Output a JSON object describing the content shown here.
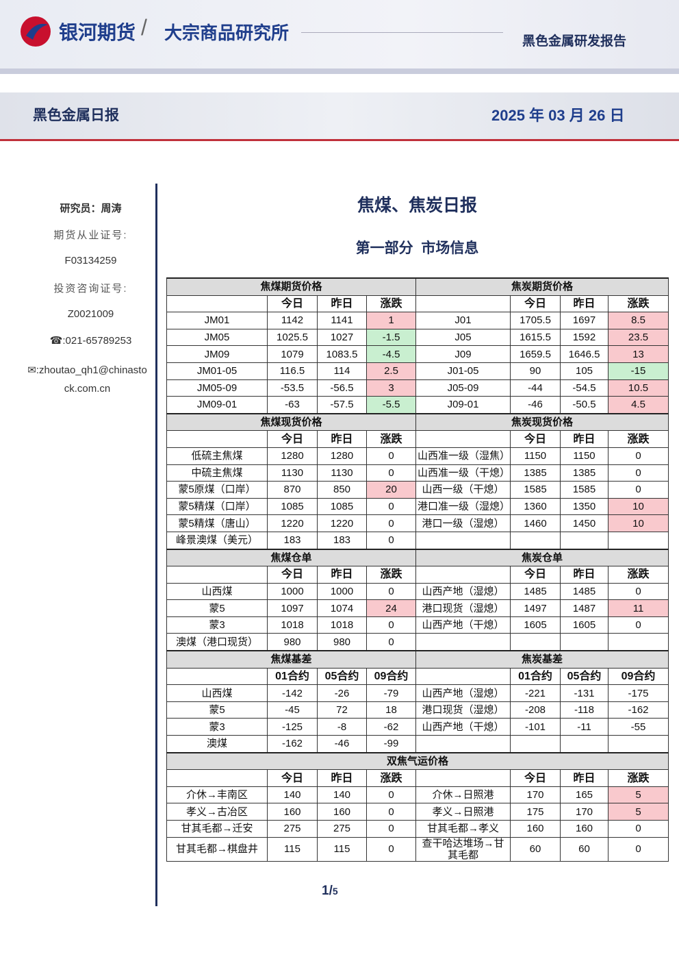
{
  "header": {
    "company": "银河期货",
    "institute": "大宗商品研究所",
    "report_type": "黑色金属研发报告"
  },
  "banner": {
    "title": "黑色金属日报",
    "date": "2025 年 03 月 26 日"
  },
  "sidebar": {
    "researcher": "研究员：周涛",
    "license_label": "期货从业证号:",
    "license": "F03134259",
    "consult_label": "投资咨询证号:",
    "consult": "Z0021009",
    "phone": "☎:021-65789253",
    "email": "✉:zhoutao_qh1@chinastock.com.cn"
  },
  "main": {
    "title": "焦煤、焦炭日报",
    "section": "第一部分  市场信息"
  },
  "table": {
    "sections": [
      {
        "left_title": "焦煤期货价格",
        "right_title": "焦炭期货价格",
        "left_headers": [
          "今日",
          "昨日",
          "涨跌"
        ],
        "right_headers": [
          "今日",
          "昨日",
          "涨跌"
        ],
        "left_rows": [
          [
            "JM01",
            1142,
            1141,
            1
          ],
          [
            "JM05",
            1025.5,
            1027,
            -1.5
          ],
          [
            "JM09",
            1079,
            1083.5,
            -4.5
          ],
          [
            "JM01-05",
            116.5,
            114,
            2.5
          ],
          [
            "JM05-09",
            -53.5,
            -56.5,
            3
          ],
          [
            "JM09-01",
            -63,
            -57.5,
            -5.5
          ]
        ],
        "right_rows": [
          [
            "J01",
            1705.5,
            1697,
            8.5
          ],
          [
            "J05",
            1615.5,
            1592,
            23.5
          ],
          [
            "J09",
            1659.5,
            1646.5,
            13
          ],
          [
            "J01-05",
            90,
            105,
            -15
          ],
          [
            "J05-09",
            -44,
            -54.5,
            10.5
          ],
          [
            "J09-01",
            -46,
            -50.5,
            4.5
          ]
        ],
        "change_colors": {
          "up": "#f9c9cd",
          "down": "#c9efd0"
        }
      },
      {
        "left_title": "焦煤现货价格",
        "right_title": "焦炭现货价格",
        "left_headers": [
          "今日",
          "昨日",
          "涨跌"
        ],
        "right_headers": [
          "今日",
          "昨日",
          "涨跌"
        ],
        "left_rows": [
          [
            "低硫主焦煤",
            1280,
            1280,
            0
          ],
          [
            "中硫主焦煤",
            1130,
            1130,
            0
          ],
          [
            "蒙5原煤（口岸）",
            870,
            850,
            20
          ],
          [
            "蒙5精煤（口岸）",
            1085,
            1085,
            0
          ],
          [
            "蒙5精煤（唐山）",
            1220,
            1220,
            0
          ],
          [
            "峰景澳煤（美元）",
            183,
            183,
            0
          ]
        ],
        "right_rows": [
          [
            "山西准一级（湿焦）",
            1150,
            1150,
            0
          ],
          [
            "山西准一级（干熄）",
            1385,
            1385,
            0
          ],
          [
            "山西一级（干熄）",
            1585,
            1585,
            0
          ],
          [
            "港口准一级（湿熄）",
            1360,
            1350,
            10
          ],
          [
            "港口一级（湿熄）",
            1460,
            1450,
            10
          ]
        ],
        "change_colors": {
          "up": "#f9c9cd",
          "down": "#c9efd0"
        }
      },
      {
        "left_title": "焦煤仓单",
        "right_title": "焦炭仓单",
        "left_headers": [
          "今日",
          "昨日",
          "涨跌"
        ],
        "right_headers": [
          "今日",
          "昨日",
          "涨跌"
        ],
        "left_rows": [
          [
            "山西煤",
            1000,
            1000,
            0
          ],
          [
            "蒙5",
            1097,
            1074,
            24
          ],
          [
            "蒙3",
            1018,
            1018,
            0
          ],
          [
            "澳煤（港口现货）",
            980,
            980,
            0
          ]
        ],
        "right_rows": [
          [
            "山西产地（湿熄）",
            1485,
            1485,
            0
          ],
          [
            "港口现货（湿熄）",
            1497,
            1487,
            11
          ],
          [
            "山西产地（干熄）",
            1605,
            1605,
            0
          ]
        ],
        "change_colors": {
          "up": "#f9c9cd",
          "down": "#c9efd0"
        }
      },
      {
        "left_title": "焦煤基差",
        "right_title": "焦炭基差",
        "left_headers": [
          "01合约",
          "05合约",
          "09合约"
        ],
        "right_headers": [
          "01合约",
          "05合约",
          "09合约"
        ],
        "left_rows": [
          [
            "山西煤",
            -142,
            -26,
            -79
          ],
          [
            "蒙5",
            -45,
            72,
            18
          ],
          [
            "蒙3",
            -125,
            -8,
            -62
          ],
          [
            "澳煤",
            -162,
            -46,
            -99
          ]
        ],
        "right_rows": [
          [
            "山西产地（湿熄）",
            -221,
            -131,
            -175
          ],
          [
            "港口现货（湿熄）",
            -208,
            -118,
            -162
          ],
          [
            "山西产地（干熄）",
            -101,
            -11,
            -55
          ]
        ]
      },
      {
        "title": "双焦气运价格",
        "left_headers": [
          "今日",
          "昨日",
          "涨跌"
        ],
        "right_headers": [
          "今日",
          "昨日",
          "涨跌"
        ],
        "left_rows": [
          [
            "介休→丰南区",
            140,
            140,
            0
          ],
          [
            "孝义→古冶区",
            160,
            160,
            0
          ],
          [
            "甘其毛都→迁安",
            275,
            275,
            0
          ],
          [
            "甘其毛都→棋盘井",
            115,
            115,
            0
          ]
        ],
        "right_rows": [
          [
            "介休→日照港",
            170,
            165,
            5
          ],
          [
            "孝义→日照港",
            175,
            170,
            5
          ],
          [
            "甘其毛都→孝义",
            160,
            160,
            0
          ],
          [
            "查干哈达堆场→甘其毛都",
            60,
            60,
            0
          ]
        ],
        "change_colors": {
          "up": "#f9c9cd",
          "down": "#c9efd0"
        }
      }
    ]
  },
  "footer": {
    "page": "1/",
    "total": "5"
  }
}
